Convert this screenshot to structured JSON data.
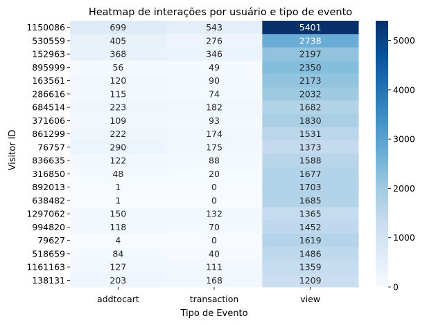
{
  "chart_data": {
    "type": "heatmap",
    "title": "Heatmap de interações por usuário e tipo de evento",
    "xlabel": "Tipo de Evento",
    "ylabel": "Visitor ID",
    "columns": [
      "addtocart",
      "transaction",
      "view"
    ],
    "rows": [
      "1150086",
      "530559",
      "152963",
      "895999",
      "163561",
      "286616",
      "684514",
      "371606",
      "861299",
      "76757",
      "836635",
      "316850",
      "892013",
      "638482",
      "1297062",
      "994820",
      "79627",
      "518659",
      "1161163",
      "138131"
    ],
    "values": [
      [
        699,
        543,
        5401
      ],
      [
        405,
        276,
        2738
      ],
      [
        368,
        346,
        2197
      ],
      [
        56,
        49,
        2350
      ],
      [
        120,
        90,
        2173
      ],
      [
        115,
        74,
        2032
      ],
      [
        223,
        182,
        1682
      ],
      [
        109,
        93,
        1830
      ],
      [
        222,
        174,
        1531
      ],
      [
        290,
        175,
        1373
      ],
      [
        122,
        88,
        1588
      ],
      [
        48,
        20,
        1677
      ],
      [
        1,
        0,
        1703
      ],
      [
        1,
        0,
        1685
      ],
      [
        150,
        132,
        1365
      ],
      [
        118,
        70,
        1452
      ],
      [
        4,
        0,
        1619
      ],
      [
        84,
        40,
        1486
      ],
      [
        127,
        111,
        1359
      ],
      [
        203,
        168,
        1209
      ]
    ],
    "vmin": 0,
    "vmax": 5401,
    "colorbar_ticks": [
      0,
      1000,
      2000,
      3000,
      4000,
      5000
    ],
    "colormap": [
      "#f7fbff",
      "#deebf7",
      "#c6dbef",
      "#9ecae1",
      "#6baed6",
      "#4292c6",
      "#2171b5",
      "#08519c",
      "#08306b"
    ]
  }
}
